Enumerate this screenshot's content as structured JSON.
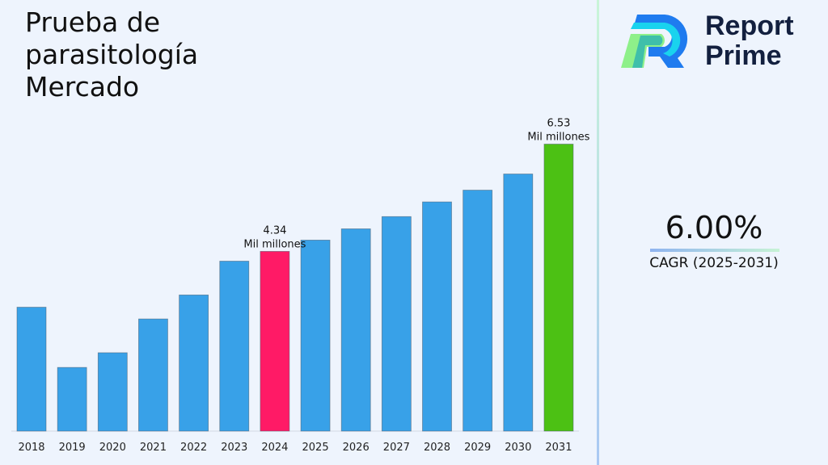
{
  "title": "Prueba de\nparasitología\nMercado",
  "logo": {
    "line1": "Report",
    "line2": "Prime"
  },
  "cagr": {
    "value": "6.00%",
    "label": "CAGR (2025-2031)"
  },
  "colors": {
    "bar": "#38a1e8",
    "highlight_2024": "#ff1a66",
    "highlight_2031": "#4cc114",
    "background": "#eef4fd"
  },
  "chart_data": {
    "type": "bar",
    "categories": [
      "2018",
      "2019",
      "2020",
      "2021",
      "2022",
      "2023",
      "2024",
      "2025",
      "2026",
      "2027",
      "2028",
      "2029",
      "2030",
      "2031"
    ],
    "values": [
      3.2,
      1.97,
      2.27,
      2.96,
      3.45,
      4.14,
      4.34,
      4.57,
      4.8,
      5.05,
      5.35,
      5.59,
      5.92,
      6.53
    ],
    "ylim": [
      0.67,
      7.0
    ],
    "grid": false,
    "annotations": [
      {
        "category": "2024",
        "value": "4.34",
        "unit": "Mil millones"
      },
      {
        "category": "2031",
        "value": "6.53",
        "unit": "Mil millones"
      }
    ],
    "title": "",
    "xlabel": "",
    "ylabel": ""
  }
}
